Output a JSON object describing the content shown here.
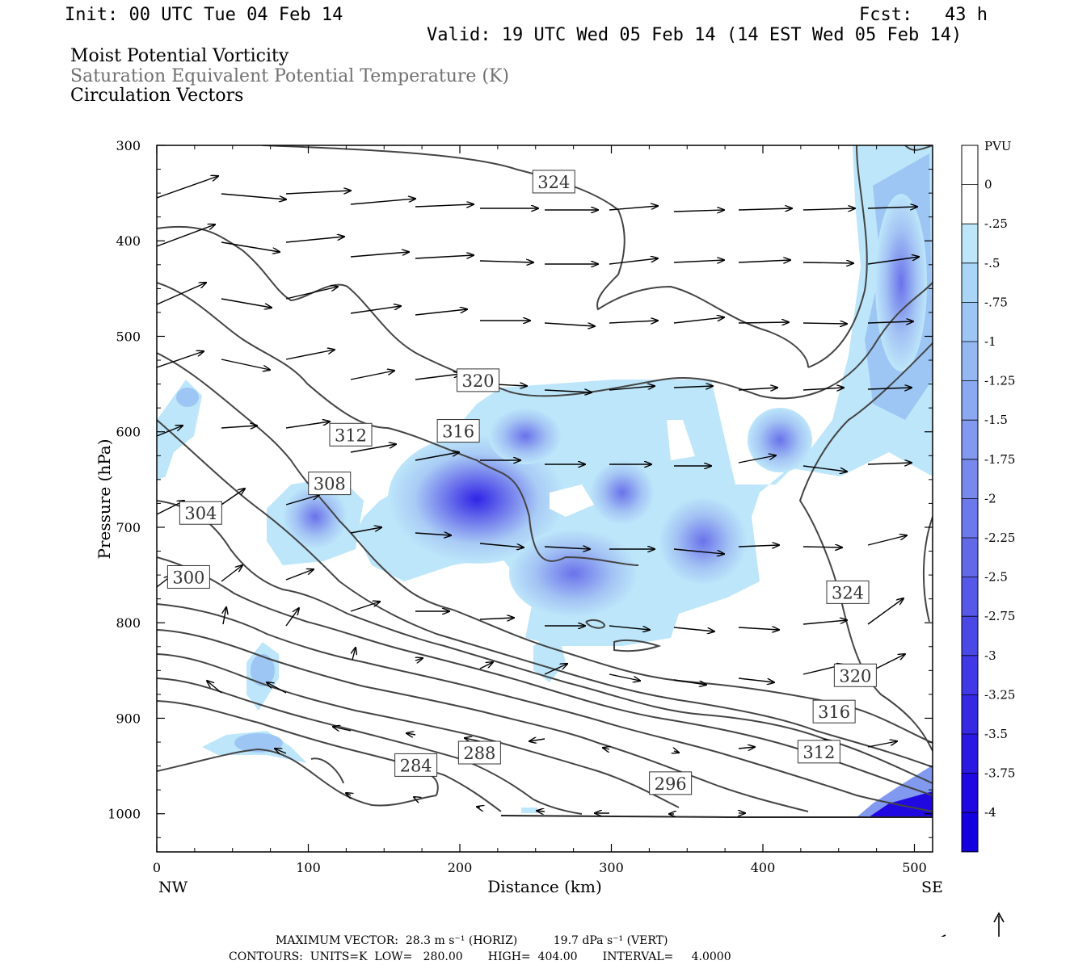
{
  "header": {
    "init": "Init: 00 UTC Tue 04 Feb 14",
    "fcst": "Fcst:   43 h",
    "valid": "Valid: 19 UTC Wed 05 Feb 14 (14 EST Wed 05 Feb 14)"
  },
  "fields": [
    {
      "label": "Moist Potential Vorticity",
      "color": "#000000"
    },
    {
      "label": "Saturation Equivalent Potential Temperature (K)",
      "color": "#707070"
    },
    {
      "label": "Circulation Vectors",
      "color": "#000000"
    }
  ],
  "footer": {
    "max_vector": "MAXIMUM VECTOR:  28.3 m s⁻¹ (HORIZ)          19.7 dPa s⁻¹ (VERT)",
    "contours": "CONTOURS:  UNITS=K  LOW=   280.00       HIGH=  404.00       INTERVAL=     4.0000"
  },
  "chart_data": {
    "type": "cross-section",
    "xlabel": "Distance (km)",
    "ylabel": "Pressure (hPa)",
    "x_ticks": [
      0,
      100,
      200,
      300,
      400,
      500
    ],
    "y_ticks": [
      300,
      400,
      500,
      600,
      700,
      800,
      900,
      1000
    ],
    "xlim": [
      0,
      512
    ],
    "ylim": [
      1040,
      300
    ],
    "x_end_labels": {
      "left": "NW",
      "right": "SE"
    },
    "colorbar": {
      "unit": "PVU",
      "labels": [
        "0",
        "-.25",
        "-.5",
        "-.75",
        "-1",
        "-1.25",
        "-1.5",
        "-1.75",
        "-2",
        "-2.25",
        "-2.5",
        "-2.75",
        "-3",
        "-3.25",
        "-3.5",
        "-3.75",
        "-4"
      ],
      "colors": [
        "#ffffff",
        "#ffffff",
        "#bde6fa",
        "#a9d5f6",
        "#9dc6f4",
        "#95b8f2",
        "#8ba9f0",
        "#8199ee",
        "#7789ec",
        "#6c79eb",
        "#6169e9",
        "#5659e8",
        "#4b49e6",
        "#4039e5",
        "#3529e3",
        "#2a19e2",
        "#1f09e0",
        "#1400df"
      ]
    },
    "contour_labels": [
      {
        "text": "324",
        "x": 262,
        "p": 338
      },
      {
        "text": "320",
        "x": 212,
        "p": 546
      },
      {
        "text": "316",
        "x": 199,
        "p": 599
      },
      {
        "text": "312",
        "x": 128,
        "p": 603
      },
      {
        "text": "308",
        "x": 114,
        "p": 654
      },
      {
        "text": "304",
        "x": 29,
        "p": 685
      },
      {
        "text": "300",
        "x": 21,
        "p": 752
      },
      {
        "text": "324",
        "x": 456,
        "p": 768
      },
      {
        "text": "320",
        "x": 461,
        "p": 855
      },
      {
        "text": "316",
        "x": 447,
        "p": 893
      },
      {
        "text": "312",
        "x": 437,
        "p": 935
      },
      {
        "text": "288",
        "x": 213,
        "p": 936
      },
      {
        "text": "284",
        "x": 171,
        "p": 949
      },
      {
        "text": "296",
        "x": 339,
        "p": 968
      }
    ],
    "contour_interval": 4,
    "contour_low": 280,
    "contour_high": 404,
    "max_vector_horiz": "28.3 m s-1",
    "max_vector_vert": "19.7 dPa s-1"
  }
}
